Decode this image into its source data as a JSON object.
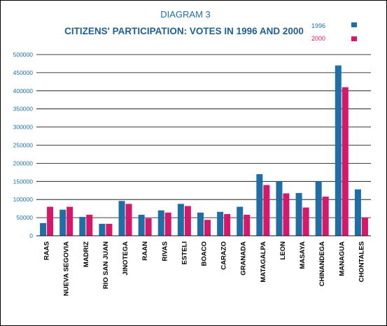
{
  "chart_data": {
    "type": "bar",
    "supertitle": "DIAGRAM 3",
    "title": "CITIZENS' PARTICIPATION: VOTES IN 1996 AND 2000",
    "xlabel": "",
    "ylabel": "",
    "ylim": [
      0,
      500000
    ],
    "yticks": [
      0,
      50000,
      100000,
      150000,
      200000,
      250000,
      300000,
      350000,
      400000,
      450000,
      500000
    ],
    "ytick_labels": [
      "0",
      "50000",
      "100000",
      "150000",
      "200000",
      "250000",
      "300000",
      "350000",
      "400000",
      "450000",
      "500000"
    ],
    "grid": "horizontal",
    "legend_position": "top-right",
    "categories": [
      "RAAS",
      "NUEVA SEGOVIA",
      "MADRIZ",
      "RIO SAN JUAN",
      "JINOTEGA",
      "RAAN",
      "RIVAS",
      "ESTELI",
      "BOACO",
      "CARAZO",
      "GRANADA",
      "MATAGALPA",
      "LEON",
      "MASAYA",
      "CHINANDEGA",
      "MANAGUA",
      "CHONTALES"
    ],
    "series": [
      {
        "name": "1996",
        "color": "#1f6fa6",
        "values": [
          35000,
          72000,
          52000,
          33000,
          96000,
          58000,
          70000,
          88000,
          64000,
          66000,
          80000,
          170000,
          150000,
          118000,
          150000,
          470000,
          128000
        ]
      },
      {
        "name": "2000",
        "color": "#d6186a",
        "values": [
          80000,
          80000,
          58000,
          33000,
          88000,
          48000,
          64000,
          82000,
          44000,
          60000,
          58000,
          140000,
          117000,
          78000,
          108000,
          410000,
          50000
        ]
      }
    ]
  }
}
